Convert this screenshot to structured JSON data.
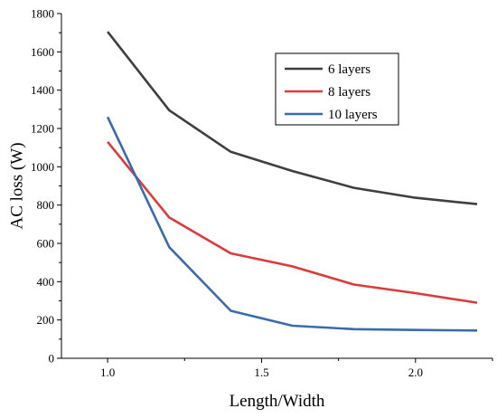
{
  "chart_data": {
    "type": "line",
    "xlabel": "Length/Width",
    "ylabel": "AC loss (W)",
    "x": [
      1.0,
      1.2,
      1.4,
      1.6,
      1.8,
      2.0,
      2.2
    ],
    "xlim": [
      0.85,
      2.25
    ],
    "ylim": [
      0,
      1800
    ],
    "xticks": [
      "1.0",
      "1.5",
      "2.0"
    ],
    "xtick_values": [
      1.0,
      1.5,
      2.0
    ],
    "yticks": [
      "0",
      "200",
      "400",
      "600",
      "800",
      "1000",
      "1200",
      "1400",
      "1600",
      "1800"
    ],
    "ytick_values": [
      0,
      200,
      400,
      600,
      800,
      1000,
      1200,
      1400,
      1600,
      1800
    ],
    "grid": false,
    "legend_position": "top-right",
    "series": [
      {
        "name": "6 layers",
        "color": "#3f3f3f",
        "values": [
          1705,
          1295,
          1078,
          978,
          890,
          838,
          805
        ]
      },
      {
        "name": "8 layers",
        "color": "#dd3a3a",
        "values": [
          1130,
          735,
          548,
          480,
          385,
          340,
          290
        ]
      },
      {
        "name": "10 layers",
        "color": "#3a6bb0",
        "values": [
          1260,
          580,
          248,
          170,
          152,
          148,
          145
        ]
      }
    ]
  }
}
